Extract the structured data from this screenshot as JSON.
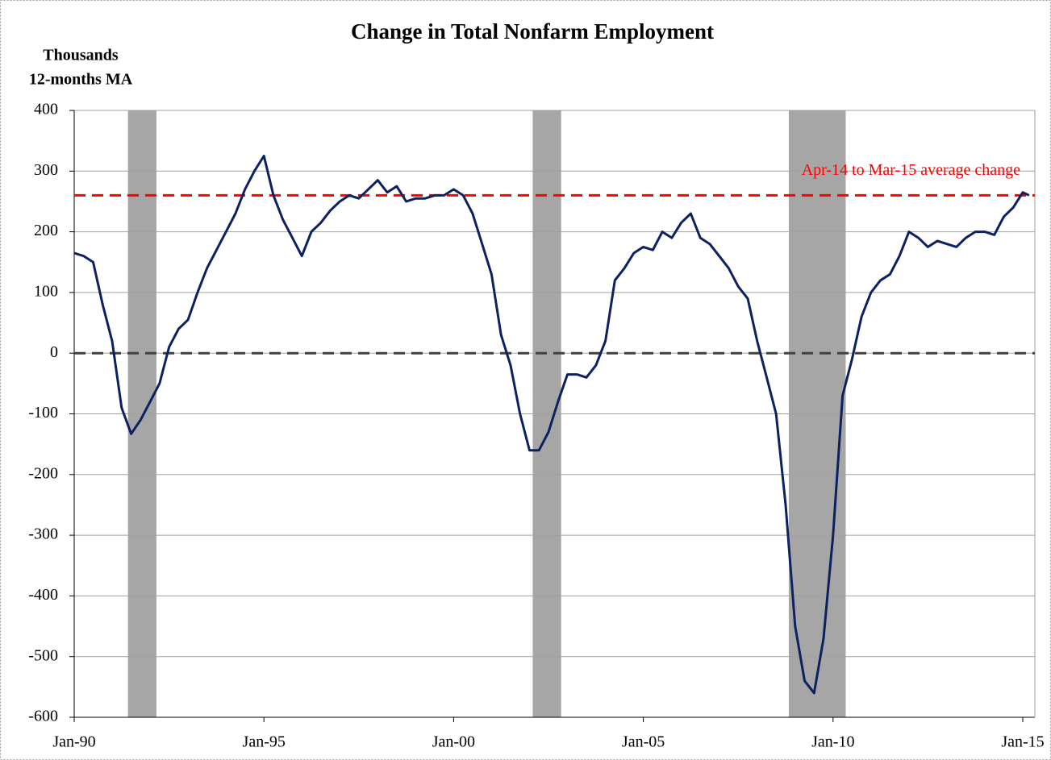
{
  "chart_data": {
    "type": "line",
    "title": "Change in Total Nonfarm Employment",
    "y_label_lines": [
      "Thousands",
      "12-months MA"
    ],
    "x": [
      "Jan-90",
      "Apr-90",
      "Jul-90",
      "Oct-90",
      "Jan-91",
      "Apr-91",
      "Jul-91",
      "Oct-91",
      "Jan-92",
      "Apr-92",
      "Jul-92",
      "Oct-92",
      "Jan-93",
      "Apr-93",
      "Jul-93",
      "Oct-93",
      "Jan-94",
      "Apr-94",
      "Jul-94",
      "Oct-94",
      "Jan-95",
      "Apr-95",
      "Jul-95",
      "Oct-95",
      "Jan-96",
      "Apr-96",
      "Jul-96",
      "Oct-96",
      "Jan-97",
      "Apr-97",
      "Jul-97",
      "Oct-97",
      "Jan-98",
      "Apr-98",
      "Jul-98",
      "Oct-98",
      "Jan-99",
      "Apr-99",
      "Jul-99",
      "Oct-99",
      "Jan-00",
      "Apr-00",
      "Jul-00",
      "Oct-00",
      "Jan-01",
      "Apr-01",
      "Jul-01",
      "Oct-01",
      "Jan-02",
      "Apr-02",
      "Jul-02",
      "Oct-02",
      "Jan-03",
      "Apr-03",
      "Jul-03",
      "Oct-03",
      "Jan-04",
      "Apr-04",
      "Jul-04",
      "Oct-04",
      "Jan-05",
      "Apr-05",
      "Jul-05",
      "Oct-05",
      "Jan-06",
      "Apr-06",
      "Jul-06",
      "Oct-06",
      "Jan-07",
      "Apr-07",
      "Jul-07",
      "Oct-07",
      "Jan-08",
      "Apr-08",
      "Jul-08",
      "Oct-08",
      "Jan-09",
      "Apr-09",
      "Jul-09",
      "Oct-09",
      "Jan-10",
      "Apr-10",
      "Jul-10",
      "Oct-10",
      "Jan-11",
      "Apr-11",
      "Jul-11",
      "Oct-11",
      "Jan-12",
      "Apr-12",
      "Jul-12",
      "Oct-12",
      "Jan-13",
      "Apr-13",
      "Jul-13",
      "Oct-13",
      "Jan-14",
      "Apr-14",
      "Jul-14",
      "Oct-14",
      "Jan-15",
      "Mar-15"
    ],
    "values": [
      165,
      160,
      150,
      80,
      20,
      -90,
      -133,
      -110,
      -80,
      -50,
      10,
      40,
      55,
      100,
      140,
      170,
      200,
      230,
      270,
      300,
      325,
      260,
      220,
      190,
      160,
      200,
      215,
      235,
      250,
      260,
      255,
      270,
      285,
      265,
      275,
      250,
      255,
      255,
      260,
      260,
      270,
      260,
      230,
      180,
      130,
      30,
      -20,
      -100,
      -160,
      -160,
      -130,
      -80,
      -35,
      -35,
      -40,
      -20,
      20,
      120,
      140,
      165,
      175,
      170,
      200,
      190,
      215,
      230,
      190,
      180,
      160,
      140,
      110,
      90,
      20,
      -40,
      -100,
      -250,
      -450,
      -540,
      -560,
      -470,
      -300,
      -70,
      -10,
      60,
      100,
      120,
      130,
      160,
      200,
      190,
      175,
      185,
      180,
      175,
      190,
      200,
      200,
      195,
      225,
      240,
      265,
      260
    ],
    "color": "#0d2160",
    "xticks": [
      "Jan-90",
      "Jan-95",
      "Jan-00",
      "Jan-05",
      "Jan-10",
      "Jan-15"
    ],
    "ylim": [
      -600,
      400
    ],
    "yticks": [
      -600,
      -500,
      -400,
      -300,
      -200,
      -100,
      0,
      100,
      200,
      300,
      400
    ],
    "grid": true,
    "shaded_periods": [
      [
        "Jun-91",
        "Mar-92"
      ],
      [
        "Feb-02",
        "Nov-02"
      ],
      [
        "Nov-08",
        "May-10"
      ]
    ],
    "shade_color": "#a6a6a6",
    "reference_lines": [
      {
        "value": 260,
        "color": "#ff0000",
        "label": "Apr-14  to Mar-15  average  change"
      },
      {
        "value": 0,
        "color": "#404040"
      }
    ]
  }
}
